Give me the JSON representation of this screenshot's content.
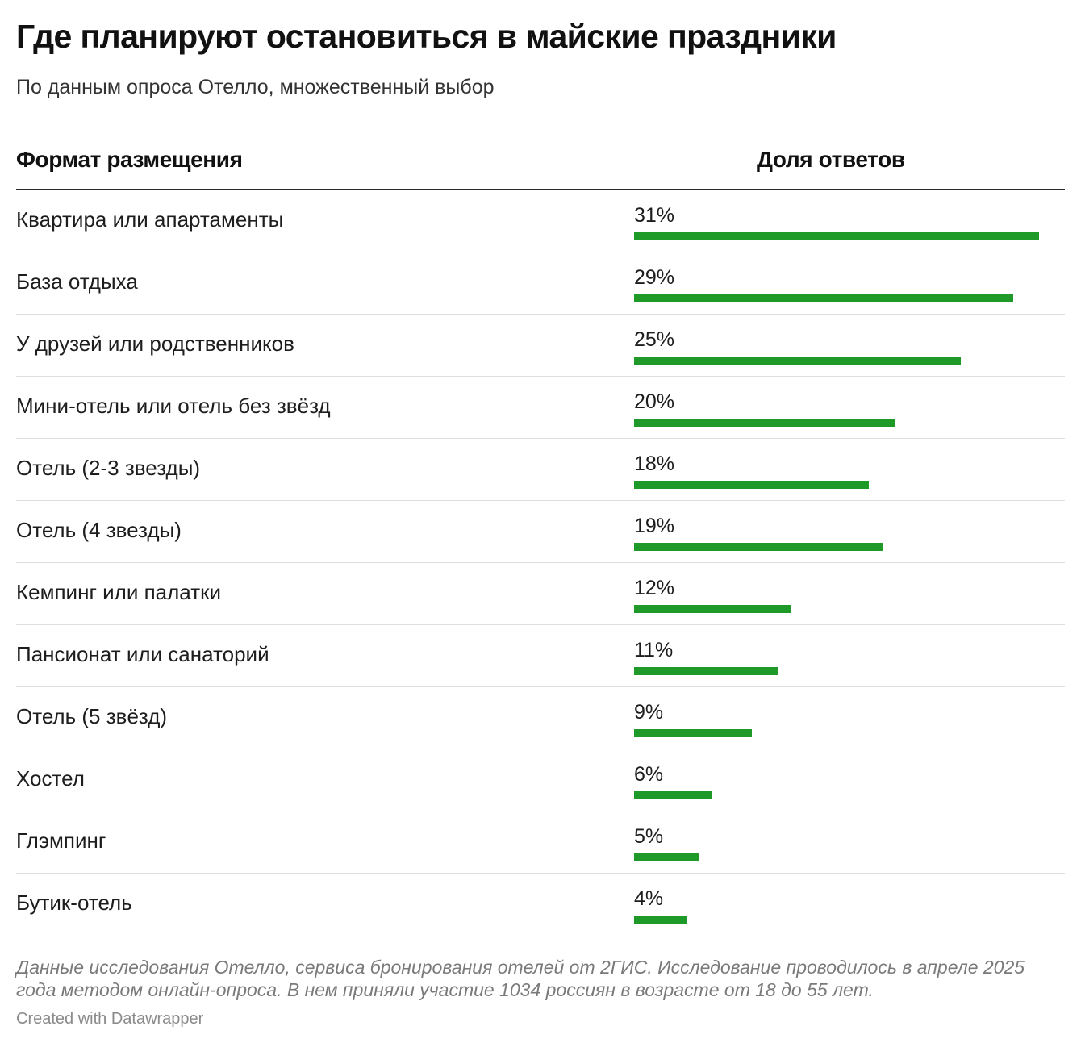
{
  "title": "Где планируют остановиться в майские праздники",
  "subtitle": "По данным опроса Отелло, множественный выбор",
  "columns": {
    "left": "Формат размещения",
    "right": "Доля ответов"
  },
  "colors": {
    "bar": "#1f9a28"
  },
  "chart_data": {
    "type": "bar",
    "orientation": "horizontal",
    "categories": [
      "Квартира или апартаменты",
      "База отдыха",
      "У друзей или родственников",
      "Мини-отель или отель без звёзд",
      "Отель (2-3 звезды)",
      "Отель (4 звезды)",
      "Кемпинг или палатки",
      "Пансионат или санаторий",
      "Отель (5 звёзд)",
      "Хостел",
      "Глэмпинг",
      "Бутик-отель"
    ],
    "values": [
      31,
      29,
      25,
      20,
      18,
      19,
      12,
      11,
      9,
      6,
      5,
      4
    ],
    "value_labels": [
      "31%",
      "29%",
      "25%",
      "20%",
      "18%",
      "19%",
      "12%",
      "11%",
      "9%",
      "6%",
      "5%",
      "4%"
    ],
    "unit": "%"
  },
  "notes": "Данные исследования Отелло, сервиса бронирования отелей от 2ГИС. Исследование проводилось в апреле 2025 года методом онлайн-опроса. В нем приняли участие 1034 россиян в возрасте от 18 до 55 лет.",
  "credit": "Created with Datawrapper"
}
